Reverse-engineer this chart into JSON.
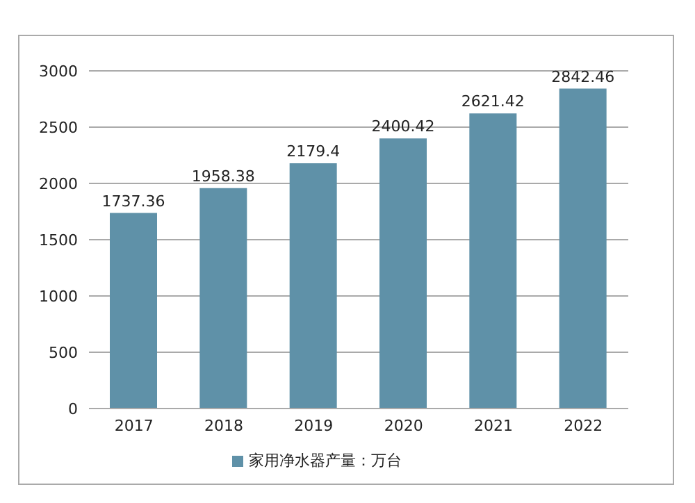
{
  "chart_data": {
    "type": "bar",
    "categories": [
      "2017",
      "2018",
      "2019",
      "2020",
      "2021",
      "2022"
    ],
    "series": [
      {
        "name": "家用净水器产量：万台",
        "color": "#5f91a8",
        "values": [
          1737.36,
          1958.38,
          2179.4,
          2400.42,
          2621.42,
          2842.46
        ]
      }
    ],
    "ylim": [
      0,
      3000
    ],
    "yticks": [
      0,
      500,
      1000,
      1500,
      2000,
      2500,
      3000
    ],
    "grid": "y",
    "data_labels": true,
    "legend": "bottom"
  }
}
